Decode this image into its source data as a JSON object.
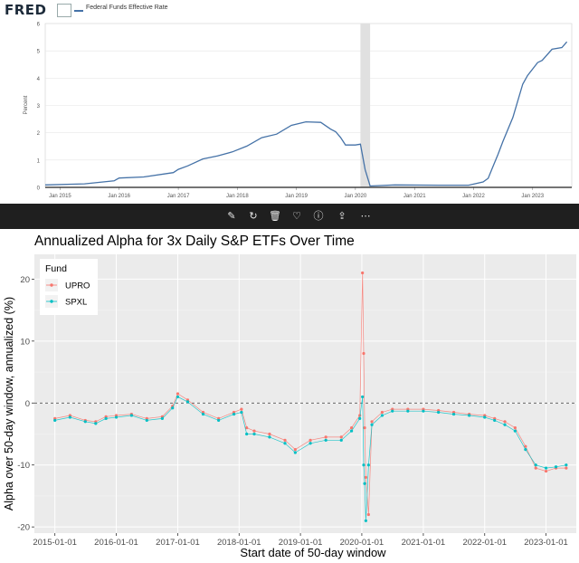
{
  "fred": {
    "logo": "FRED",
    "legend_label": "Federal Funds Effective Rate",
    "chart_data": {
      "type": "line",
      "ylabel": "Percent",
      "ylim": [
        0,
        6
      ],
      "yticks": [
        "0",
        "1",
        "2",
        "3",
        "4",
        "5",
        "6"
      ],
      "xticks": [
        "Jan 2015",
        "Jan 2016",
        "Jan 2017",
        "Jan 2018",
        "Jan 2019",
        "Jan 2020",
        "Jan 2021",
        "Jan 2022",
        "Jan 2023"
      ],
      "recession_shading": [
        "2020-02",
        "2020-04"
      ],
      "series": [
        {
          "x": [
            "2014-10",
            "2015-06",
            "2015-12",
            "2016-01",
            "2016-06",
            "2016-12",
            "2017-01",
            "2017-03",
            "2017-06",
            "2017-09",
            "2017-12",
            "2018-03",
            "2018-06",
            "2018-09",
            "2018-12",
            "2019-03",
            "2019-06",
            "2019-08",
            "2019-09",
            "2019-10",
            "2019-11",
            "2020-01",
            "2020-02",
            "2020-03",
            "2020-04",
            "2020-09",
            "2021-06",
            "2021-12",
            "2022-03",
            "2022-04",
            "2022-05",
            "2022-06",
            "2022-07",
            "2022-09",
            "2022-11",
            "2022-12",
            "2023-02",
            "2023-03",
            "2023-05",
            "2023-07",
            "2023-08"
          ],
          "values": [
            0.09,
            0.13,
            0.24,
            0.34,
            0.38,
            0.54,
            0.66,
            0.79,
            1.04,
            1.15,
            1.3,
            1.51,
            1.82,
            1.95,
            2.27,
            2.4,
            2.38,
            2.13,
            2.04,
            1.83,
            1.55,
            1.55,
            1.58,
            0.65,
            0.05,
            0.09,
            0.08,
            0.08,
            0.2,
            0.33,
            0.77,
            1.21,
            1.68,
            2.56,
            3.78,
            4.1,
            4.57,
            4.65,
            5.06,
            5.12,
            5.33
          ]
        }
      ]
    }
  },
  "toolbar": {
    "icons": [
      "edit-icon",
      "rotate-icon",
      "delete-icon",
      "favorite-icon",
      "info-icon",
      "share-icon",
      "more-icon"
    ]
  },
  "chart_data": {
    "type": "scatter",
    "title": "Annualized Alpha for 3x Daily S&P ETFs Over Time",
    "xlabel": "Start date of 50-day window",
    "ylabel": "Alpha over 50-day window, annualized (%)",
    "xlim": [
      "2014-09-01",
      "2023-06-30"
    ],
    "ylim": [
      -21,
      24
    ],
    "xticks": [
      "2015-01-01",
      "2016-01-01",
      "2017-01-01",
      "2018-01-01",
      "2019-01-01",
      "2020-01-01",
      "2021-01-01",
      "2022-01-01",
      "2023-01-01"
    ],
    "yticks": [
      -20,
      -10,
      0,
      10,
      20
    ],
    "reference_line": 0,
    "legend": {
      "title": "Fund",
      "position": "top-left"
    },
    "series": [
      {
        "name": "UPRO",
        "color": "#F8766D",
        "x": [
          "2015-01-01",
          "2015-04-01",
          "2015-07-01",
          "2015-09-01",
          "2015-11-01",
          "2016-01-01",
          "2016-04-01",
          "2016-07-01",
          "2016-10-01",
          "2016-12-01",
          "2017-01-01",
          "2017-03-01",
          "2017-06-01",
          "2017-09-01",
          "2017-12-01",
          "2018-01-15",
          "2018-02-15",
          "2018-04-01",
          "2018-07-01",
          "2018-10-01",
          "2018-12-01",
          "2019-03-01",
          "2019-06-01",
          "2019-09-01",
          "2019-11-01",
          "2019-12-20",
          "2020-01-05",
          "2020-01-12",
          "2020-01-18",
          "2020-01-25",
          "2020-02-10",
          "2020-03-01",
          "2020-05-01",
          "2020-07-01",
          "2020-10-01",
          "2021-01-01",
          "2021-04-01",
          "2021-07-01",
          "2021-10-01",
          "2022-01-01",
          "2022-03-01",
          "2022-05-01",
          "2022-07-01",
          "2022-09-01",
          "2022-11-01",
          "2023-01-01",
          "2023-03-01",
          "2023-05-01"
        ],
        "values": [
          -2.5,
          -2.0,
          -2.8,
          -3.0,
          -2.2,
          -2.0,
          -1.8,
          -2.5,
          -2.2,
          -0.5,
          1.5,
          0.5,
          -1.5,
          -2.5,
          -1.5,
          -1.0,
          -4.0,
          -4.5,
          -5.0,
          -6.0,
          -7.5,
          -6.0,
          -5.5,
          -5.5,
          -4.0,
          -2.0,
          21.0,
          8.0,
          -4.0,
          -12.0,
          -18.0,
          -3.0,
          -1.5,
          -1.0,
          -1.0,
          -1.0,
          -1.2,
          -1.5,
          -1.8,
          -2.0,
          -2.5,
          -3.0,
          -4.0,
          -7.0,
          -10.5,
          -11.0,
          -10.5,
          -10.5
        ]
      },
      {
        "name": "SPXL",
        "color": "#00BFC4",
        "x": [
          "2015-01-01",
          "2015-04-01",
          "2015-07-01",
          "2015-09-01",
          "2015-11-01",
          "2016-01-01",
          "2016-04-01",
          "2016-07-01",
          "2016-10-01",
          "2016-12-01",
          "2017-01-01",
          "2017-03-01",
          "2017-06-01",
          "2017-09-01",
          "2017-12-01",
          "2018-01-15",
          "2018-02-15",
          "2018-04-01",
          "2018-07-01",
          "2018-10-01",
          "2018-12-01",
          "2019-03-01",
          "2019-06-01",
          "2019-09-01",
          "2019-11-01",
          "2019-12-20",
          "2020-01-05",
          "2020-01-12",
          "2020-01-18",
          "2020-01-25",
          "2020-02-10",
          "2020-03-01",
          "2020-05-01",
          "2020-07-01",
          "2020-10-01",
          "2021-01-01",
          "2021-04-01",
          "2021-07-01",
          "2021-10-01",
          "2022-01-01",
          "2022-03-01",
          "2022-05-01",
          "2022-07-01",
          "2022-09-01",
          "2022-11-01",
          "2023-01-01",
          "2023-03-01",
          "2023-05-01"
        ],
        "values": [
          -2.8,
          -2.3,
          -3.0,
          -3.3,
          -2.5,
          -2.3,
          -2.0,
          -2.8,
          -2.5,
          -0.8,
          1.0,
          0.2,
          -1.8,
          -2.8,
          -1.8,
          -1.5,
          -5.0,
          -5.0,
          -5.5,
          -6.5,
          -8.0,
          -6.5,
          -6.0,
          -6.0,
          -4.5,
          -2.5,
          1.0,
          -10.0,
          -13.0,
          -19.0,
          -10.0,
          -3.5,
          -2.0,
          -1.3,
          -1.3,
          -1.3,
          -1.5,
          -1.8,
          -2.0,
          -2.3,
          -2.8,
          -3.5,
          -4.5,
          -7.5,
          -10.0,
          -10.5,
          -10.3,
          -10.0
        ]
      }
    ]
  }
}
